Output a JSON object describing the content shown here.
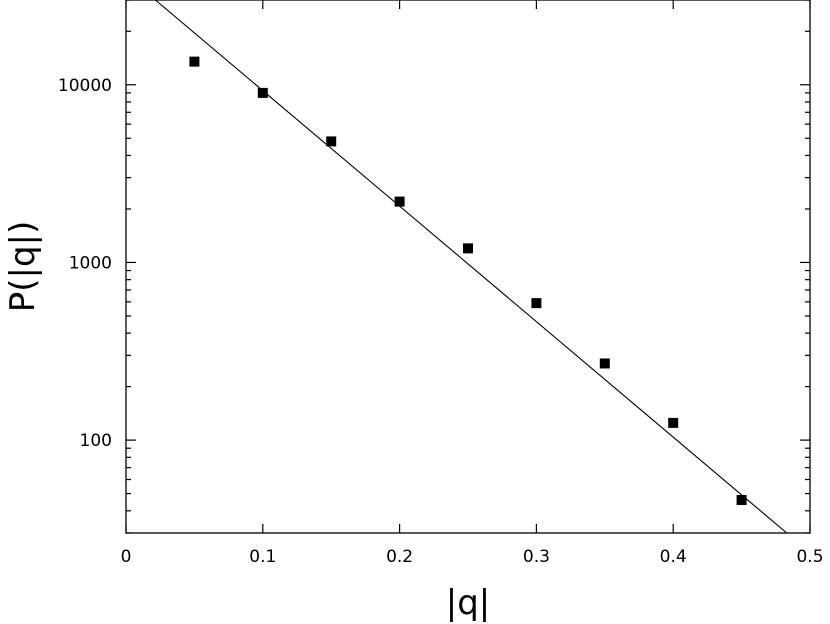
{
  "chart_data": {
    "type": "scatter",
    "title": "",
    "xlabel": "|q|",
    "ylabel": "P(|q|)",
    "xlim": [
      0,
      0.5
    ],
    "ylim": [
      30,
      30000
    ],
    "yscale": "log",
    "grid": false,
    "legend": "none",
    "x_ticks": [
      0,
      0.1,
      0.2,
      0.3,
      0.4,
      0.5
    ],
    "x_tick_labels": [
      "0",
      "0.1",
      "0.2",
      "0.3",
      "0.4",
      "0.5"
    ],
    "y_ticks": [
      100,
      1000,
      10000
    ],
    "y_tick_labels": [
      "100",
      "1000",
      "10000"
    ],
    "series": [
      {
        "type": "scatter",
        "marker": "square",
        "color": "#000000",
        "x": [
          0.05,
          0.1,
          0.15,
          0.2,
          0.25,
          0.3,
          0.35,
          0.4,
          0.45
        ],
        "y": [
          13500,
          9000,
          4800,
          2200,
          1200,
          590,
          270,
          125,
          46
        ]
      },
      {
        "type": "line",
        "color": "#000000",
        "x": [
          0.0215,
          0.483
        ],
        "y": [
          30000,
          30
        ]
      }
    ]
  }
}
